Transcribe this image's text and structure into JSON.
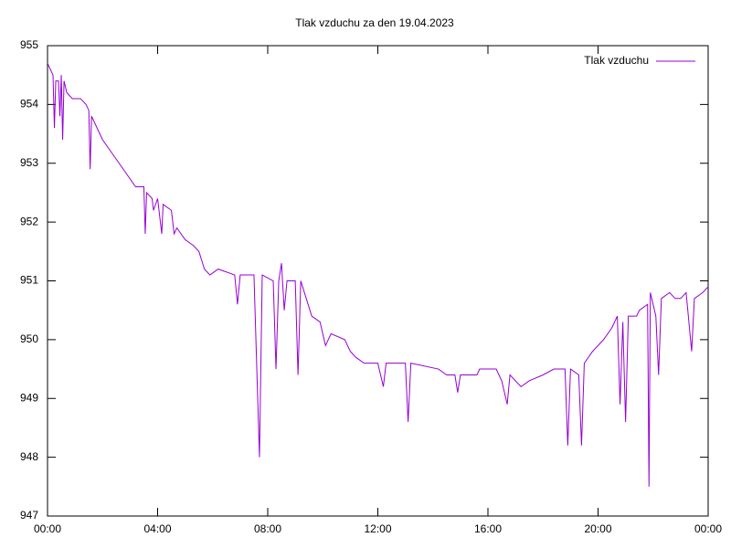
{
  "chart_data": {
    "type": "line",
    "title": "Tlak vzduchu za den 19.04.2023",
    "x": [
      0,
      0.1,
      0.2,
      0.25,
      0.3,
      0.4,
      0.45,
      0.5,
      0.55,
      0.6,
      0.7,
      0.9,
      1.2,
      1.4,
      1.5,
      1.55,
      1.6,
      1.8,
      2.0,
      2.3,
      2.6,
      2.9,
      3.2,
      3.5,
      3.55,
      3.6,
      3.8,
      3.85,
      4.0,
      4.15,
      4.2,
      4.5,
      4.6,
      4.7,
      5.0,
      5.3,
      5.5,
      5.7,
      5.9,
      6.2,
      6.8,
      6.9,
      7.0,
      7.5,
      7.7,
      7.8,
      8.2,
      8.3,
      8.4,
      8.5,
      8.6,
      8.7,
      9.0,
      9.1,
      9.2,
      9.4,
      9.6,
      9.9,
      10.1,
      10.3,
      10.8,
      11.0,
      11.2,
      11.5,
      12.0,
      12.2,
      12.3,
      13.0,
      13.1,
      13.2,
      14.2,
      14.5,
      14.8,
      14.9,
      15.0,
      15.6,
      15.7,
      16.3,
      16.5,
      16.7,
      16.8,
      17.2,
      17.5,
      18.0,
      18.4,
      18.8,
      18.9,
      19.0,
      19.3,
      19.4,
      19.5,
      19.8,
      20.2,
      20.5,
      20.7,
      20.8,
      20.9,
      21.0,
      21.1,
      21.4,
      21.5,
      21.8,
      21.85,
      21.9,
      22.1,
      22.2,
      22.3,
      22.6,
      22.8,
      23.0,
      23.2,
      23.4,
      23.5,
      23.8,
      24.0
    ],
    "series": [
      {
        "name": "Tlak vzduchu",
        "color": "#9400d3",
        "values": [
          954.7,
          954.6,
          954.5,
          953.6,
          954.4,
          954.4,
          953.8,
          954.5,
          953.4,
          954.4,
          954.2,
          954.1,
          954.1,
          954.0,
          953.9,
          952.9,
          953.8,
          953.6,
          953.4,
          953.2,
          953.0,
          952.8,
          952.6,
          952.6,
          951.8,
          952.5,
          952.4,
          952.2,
          952.4,
          951.8,
          952.3,
          952.2,
          951.8,
          951.9,
          951.7,
          951.6,
          951.5,
          951.2,
          951.1,
          951.2,
          951.1,
          950.6,
          951.1,
          951.1,
          948.0,
          951.1,
          951.0,
          949.5,
          951.0,
          951.3,
          950.5,
          951.0,
          951.0,
          949.4,
          951.0,
          950.7,
          950.4,
          950.3,
          949.9,
          950.1,
          950.0,
          949.8,
          949.7,
          949.6,
          949.6,
          949.2,
          949.6,
          949.6,
          948.6,
          949.6,
          949.5,
          949.4,
          949.4,
          949.1,
          949.4,
          949.4,
          949.5,
          949.5,
          949.3,
          948.9,
          949.4,
          949.2,
          949.3,
          949.4,
          949.5,
          949.5,
          948.2,
          949.5,
          949.4,
          948.2,
          949.6,
          949.8,
          950.0,
          950.2,
          950.4,
          948.9,
          950.3,
          948.6,
          950.4,
          950.4,
          950.5,
          950.6,
          947.5,
          950.8,
          950.4,
          949.4,
          950.7,
          950.8,
          950.7,
          950.7,
          950.8,
          949.8,
          950.7,
          950.8,
          950.9
        ]
      }
    ],
    "xlim": [
      0,
      24
    ],
    "xticks": [
      {
        "value": 0,
        "label": "00:00"
      },
      {
        "value": 4,
        "label": "04:00"
      },
      {
        "value": 8,
        "label": "08:00"
      },
      {
        "value": 12,
        "label": "12:00"
      },
      {
        "value": 16,
        "label": "16:00"
      },
      {
        "value": 20,
        "label": "20:00"
      },
      {
        "value": 24,
        "label": "00:00"
      }
    ],
    "ylim": [
      947,
      955
    ],
    "yticks": [
      947,
      948,
      949,
      950,
      951,
      952,
      953,
      954,
      955
    ],
    "legend": "top-right"
  }
}
